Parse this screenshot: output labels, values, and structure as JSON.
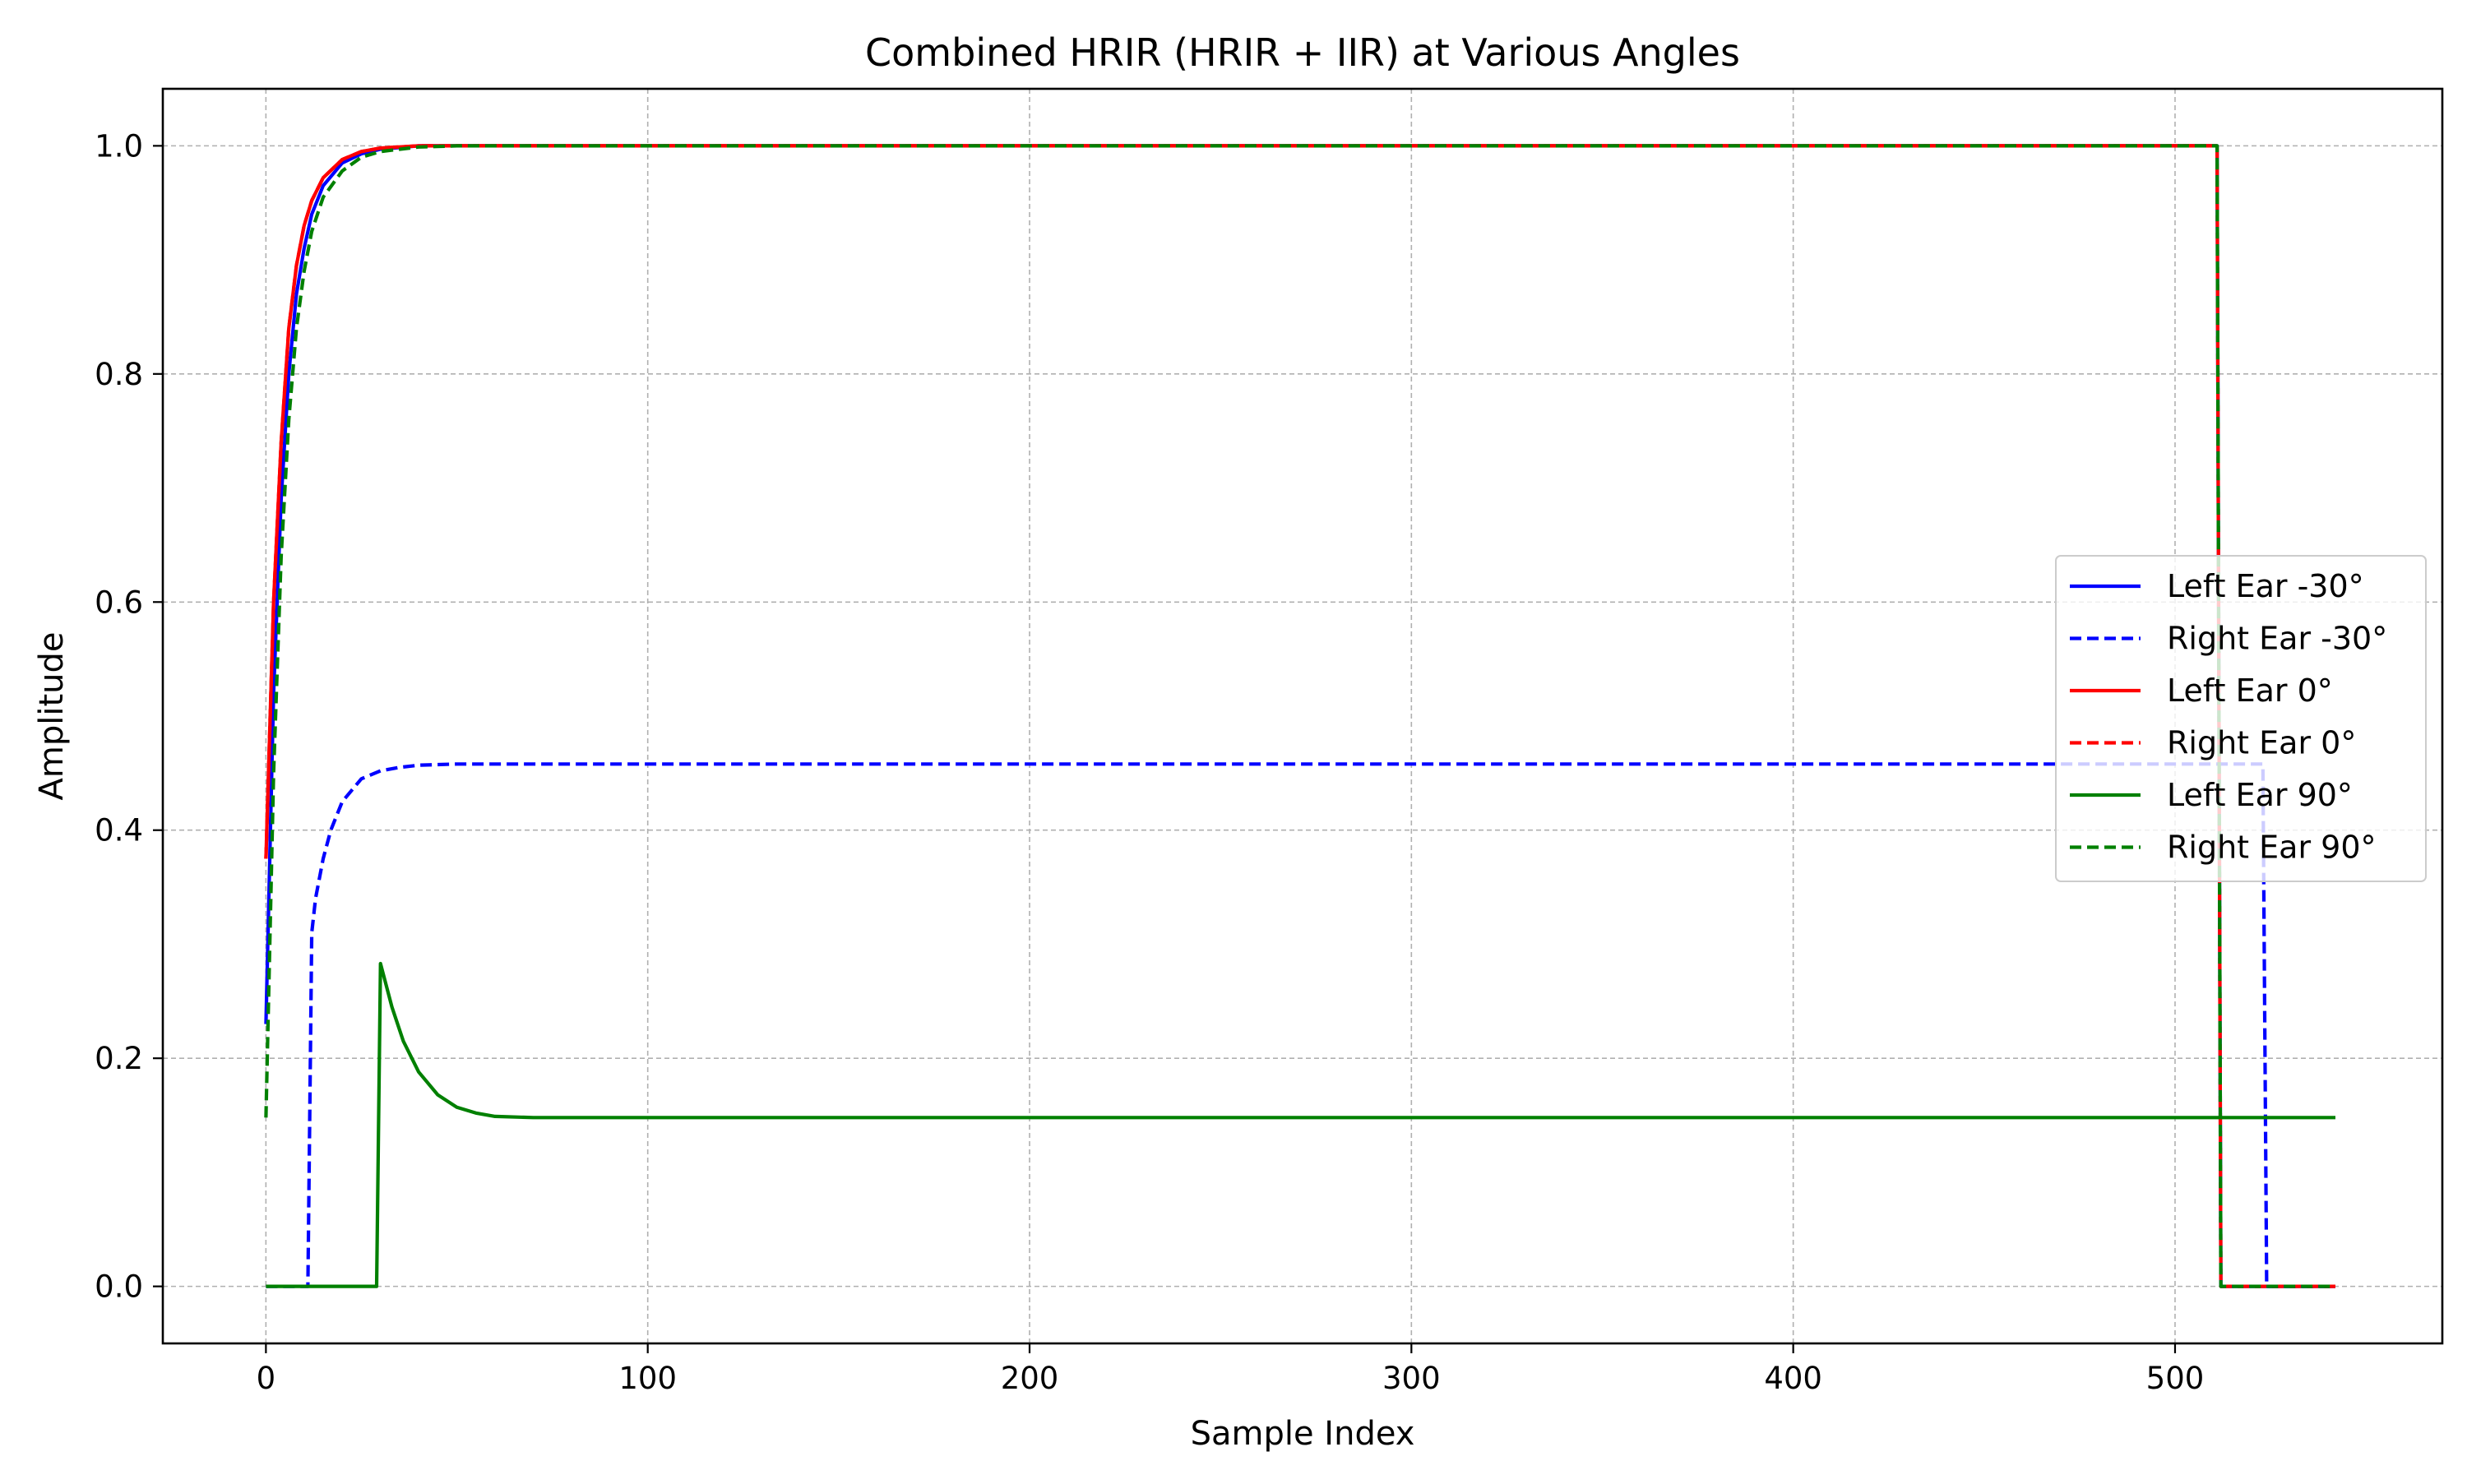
{
  "chart_data": {
    "type": "line",
    "title": "Combined HRIR (HRIR + IIR) at Various Angles",
    "xlabel": "Sample Index",
    "ylabel": "Amplitude",
    "xlim": [
      -27,
      570
    ],
    "ylim": [
      -0.05,
      1.05
    ],
    "xticks": [
      0,
      100,
      200,
      300,
      400,
      500
    ],
    "yticks": [
      0.0,
      0.2,
      0.4,
      0.6,
      0.8,
      1.0
    ],
    "xtick_labels": [
      "0",
      "100",
      "200",
      "300",
      "400",
      "500"
    ],
    "ytick_labels": [
      "0.0",
      "0.2",
      "0.4",
      "0.6",
      "0.8",
      "1.0"
    ],
    "grid": true,
    "legend_position": "center-right",
    "series": [
      {
        "name": "Left Ear -30°",
        "color": "#0000ff",
        "style": "solid",
        "x": [
          0,
          2,
          4,
          6,
          8,
          10,
          12,
          15,
          20,
          25,
          30,
          40,
          50,
          100,
          200,
          300,
          400,
          511,
          512,
          520,
          542
        ],
        "y": [
          0.23,
          0.52,
          0.69,
          0.8,
          0.87,
          0.91,
          0.94,
          0.965,
          0.985,
          0.993,
          0.997,
          1.0,
          1.0,
          1.0,
          1.0,
          1.0,
          1.0,
          1.0,
          0.0,
          0.0,
          0.0
        ]
      },
      {
        "name": "Right Ear -30°",
        "color": "#0000ff",
        "style": "dashed",
        "x": [
          0,
          11,
          12,
          13,
          15,
          17,
          20,
          25,
          30,
          35,
          40,
          50,
          100,
          200,
          300,
          400,
          500,
          523,
          524,
          542
        ],
        "y": [
          0.0,
          0.0,
          0.31,
          0.34,
          0.375,
          0.4,
          0.425,
          0.445,
          0.452,
          0.455,
          0.457,
          0.458,
          0.458,
          0.458,
          0.458,
          0.458,
          0.458,
          0.458,
          0.0,
          0.0
        ]
      },
      {
        "name": "Left Ear 0°",
        "color": "#ff0000",
        "style": "solid",
        "x": [
          0,
          2,
          4,
          6,
          8,
          10,
          12,
          15,
          20,
          25,
          30,
          40,
          50,
          100,
          200,
          300,
          400,
          511
        ],
        "y": [
          0.375,
          0.6,
          0.74,
          0.84,
          0.895,
          0.93,
          0.952,
          0.972,
          0.988,
          0.995,
          0.998,
          1.0,
          1.0,
          1.0,
          1.0,
          1.0,
          1.0,
          1.0
        ]
      },
      {
        "name": "Right Ear 0°",
        "color": "#ff0000",
        "style": "dashed",
        "x": [
          0,
          2,
          4,
          6,
          8,
          10,
          12,
          15,
          20,
          25,
          30,
          40,
          50,
          100,
          200,
          300,
          400,
          511,
          512,
          520,
          542
        ],
        "y": [
          0.375,
          0.6,
          0.74,
          0.84,
          0.895,
          0.93,
          0.952,
          0.972,
          0.988,
          0.995,
          0.998,
          1.0,
          1.0,
          1.0,
          1.0,
          1.0,
          1.0,
          1.0,
          0.0,
          0.0,
          0.0
        ]
      },
      {
        "name": "Left Ear 90°",
        "color": "#008000",
        "style": "solid",
        "x": [
          0,
          29,
          30,
          33,
          36,
          40,
          45,
          50,
          55,
          60,
          70,
          100,
          200,
          300,
          400,
          500,
          542
        ],
        "y": [
          0.0,
          0.0,
          0.283,
          0.245,
          0.215,
          0.188,
          0.168,
          0.157,
          0.152,
          0.149,
          0.148,
          0.148,
          0.148,
          0.148,
          0.148,
          0.148,
          0.148
        ]
      },
      {
        "name": "Right Ear 90°",
        "color": "#008000",
        "style": "dashed",
        "x": [
          0,
          2,
          4,
          6,
          8,
          10,
          12,
          15,
          20,
          25,
          30,
          40,
          50,
          100,
          200,
          300,
          400,
          511,
          512,
          520,
          542
        ],
        "y": [
          0.148,
          0.45,
          0.64,
          0.76,
          0.84,
          0.89,
          0.925,
          0.955,
          0.978,
          0.99,
          0.995,
          0.999,
          1.0,
          1.0,
          1.0,
          1.0,
          1.0,
          1.0,
          0.0,
          0.0,
          0.0
        ]
      }
    ]
  }
}
